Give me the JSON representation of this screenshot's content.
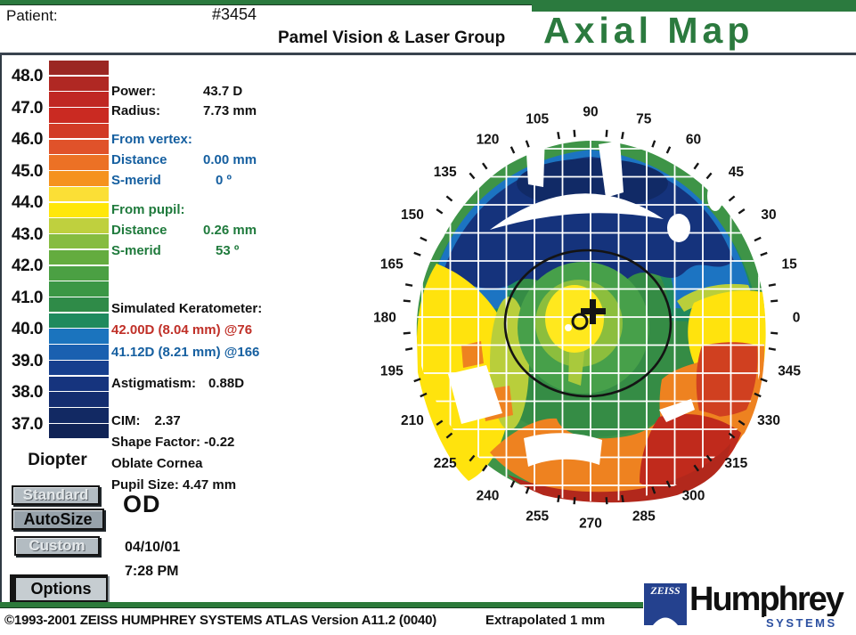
{
  "header": {
    "patient_label": "Patient:",
    "patient_id": "#3454",
    "clinic": "Pamel Vision & Laser Group",
    "title": "Axial Map"
  },
  "color_scale": {
    "unit": "Diopter",
    "tick_labels": [
      "48.0",
      "47.0",
      "46.0",
      "45.0",
      "44.0",
      "43.0",
      "42.0",
      "41.0",
      "40.0",
      "39.0",
      "38.0",
      "37.0"
    ],
    "block_colors": [
      "#9b2723",
      "#b02823",
      "#c02823",
      "#ca2a22",
      "#d23a26",
      "#e0522a",
      "#ec7125",
      "#f5921e",
      "#fbdf36",
      "#ffe70a",
      "#bfd03e",
      "#86bc40",
      "#64ac3f",
      "#4ba043",
      "#3b9745",
      "#2f8b48",
      "#1f8a5e",
      "#1b74be",
      "#1a60b0",
      "#173f8e",
      "#16347e",
      "#142d70",
      "#122963",
      "#102356"
    ]
  },
  "readouts": {
    "power_label": "Power:",
    "power_value": "43.7 D",
    "radius_label": "Radius:",
    "radius_value": "7.73 mm",
    "from_vertex": {
      "heading": "From vertex:",
      "distance_label": "Distance",
      "distance_value": "0.00 mm",
      "smerid_label": "S-merid",
      "smerid_value": "0 º"
    },
    "from_pupil": {
      "heading": "From pupil:",
      "distance_label": "Distance",
      "distance_value": "0.26 mm",
      "smerid_label": "S-merid",
      "smerid_value": "53 º"
    },
    "sim_k": {
      "heading": "Simulated Keratometer:",
      "k1": "42.00D (8.04 mm) @76",
      "k2": "41.12D (8.21 mm) @166"
    },
    "astigmatism_label": "Astigmatism:",
    "astigmatism_value": "0.88D",
    "cim_label": "CIM:",
    "cim_value": "2.37",
    "shape_factor": "Shape Factor: -0.22",
    "cornea_type": "Oblate Cornea",
    "pupil_size": "Pupil Size: 4.47 mm",
    "eye": "OD",
    "date": "04/10/01",
    "time": "7:28 PM"
  },
  "buttons": {
    "standard": "Standard",
    "autosize": "AutoSize",
    "custom": "Custom",
    "options": "Options"
  },
  "map": {
    "degree_labels": [
      0,
      15,
      30,
      45,
      60,
      75,
      90,
      105,
      120,
      135,
      150,
      165,
      180,
      195,
      210,
      225,
      240,
      255,
      270,
      285,
      300,
      315,
      330,
      345
    ]
  },
  "footer": {
    "copyright": "©1993-2001 ZEISS HUMPHREY SYSTEMS ATLAS  Version A11.2 (0040)",
    "extrapolated": "Extrapolated 1 mm"
  },
  "logo": {
    "zeiss": "ZEISS",
    "humphrey": "Humphrey",
    "systems": "SYSTEMS"
  },
  "colors": {
    "accent_green": "#2b7a3e",
    "panel_blue": "#155fa0",
    "panel_green": "#1f7a3c",
    "k1_red": "#c03028",
    "k2_blue": "#155fa0"
  }
}
